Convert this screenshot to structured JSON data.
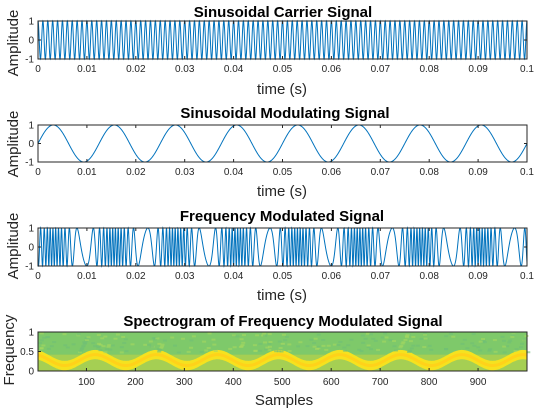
{
  "chart_data": [
    {
      "type": "line",
      "title": "Sinusoidal Carrier Signal",
      "xlabel": "time (s)",
      "ylabel": "Amplitude",
      "xlim": [
        0,
        0.1
      ],
      "ylim": [
        -1,
        1
      ],
      "xticks": [
        "0",
        "0.01",
        "0.02",
        "0.03",
        "0.04",
        "0.05",
        "0.06",
        "0.07",
        "0.08",
        "0.09",
        "0.1"
      ],
      "yticks": [
        "-1",
        "0",
        "1"
      ],
      "series": [
        {
          "function": "cos(2*pi*fc*t)",
          "fc": 1000,
          "t_start": 0,
          "t_end": 0.1,
          "color": "#0072BD"
        }
      ]
    },
    {
      "type": "line",
      "title": "Sinusoidal Modulating Signal",
      "xlabel": "time (s)",
      "ylabel": "Amplitude",
      "xlim": [
        0,
        0.1
      ],
      "ylim": [
        -1,
        1
      ],
      "xticks": [
        "0",
        "0.01",
        "0.02",
        "0.03",
        "0.04",
        "0.05",
        "0.06",
        "0.07",
        "0.08",
        "0.09",
        "0.1"
      ],
      "yticks": [
        "-1",
        "0",
        "1"
      ],
      "series": [
        {
          "function": "sin(2*pi*fm*t)",
          "fm": 80,
          "t_start": 0,
          "t_end": 0.1,
          "color": "#0072BD"
        }
      ]
    },
    {
      "type": "line",
      "title": "Frequency Modulated Signal",
      "xlabel": "time (s)",
      "ylabel": "Amplitude",
      "xlim": [
        0,
        0.1
      ],
      "ylim": [
        -1,
        1
      ],
      "xticks": [
        "0",
        "0.01",
        "0.02",
        "0.03",
        "0.04",
        "0.05",
        "0.06",
        "0.07",
        "0.08",
        "0.09",
        "0.1"
      ],
      "yticks": [
        "-1",
        "0",
        "1"
      ],
      "series": [
        {
          "function": "cos(2*pi*fc*t - beta*cos(2*pi*fm*t))",
          "fc": 1000,
          "fm": 80,
          "beta": 10,
          "t_start": 0,
          "t_end": 0.1,
          "color": "#0072BD"
        }
      ]
    },
    {
      "type": "heatmap",
      "title": "Spectrogram of Frequency Modulated Signal",
      "xlabel": "Samples",
      "ylabel": "Frequency",
      "xlim": [
        1,
        1000
      ],
      "ylim": [
        0,
        1
      ],
      "xticks": [
        "100",
        "200",
        "300",
        "400",
        "500",
        "600",
        "700",
        "800",
        "900"
      ],
      "yticks": [
        "0",
        "0.5",
        "1"
      ],
      "modulation_cycles": 8,
      "colors": {
        "background": "#7ec96a",
        "mid": "#c4d440",
        "ridge": "#f5e21f",
        "peak": "#ffd21a"
      }
    }
  ]
}
